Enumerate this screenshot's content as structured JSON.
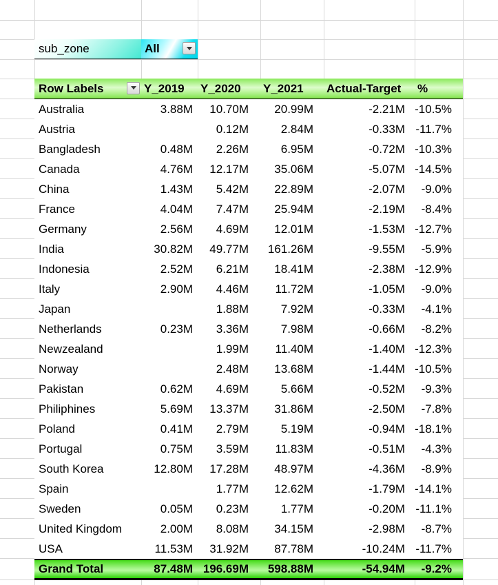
{
  "filter": {
    "label": "sub_zone",
    "value": "All"
  },
  "pivot_table": {
    "columns": [
      "Row Labels",
      "Y_2019",
      "Y_2020",
      "Y_2021",
      "Actual-Target",
      "%"
    ],
    "rows": [
      [
        "Australia",
        "3.88M",
        "10.70M",
        "20.99M",
        "-2.21M",
        "-10.5%"
      ],
      [
        "Austria",
        "",
        "0.12M",
        "2.84M",
        "-0.33M",
        "-11.7%"
      ],
      [
        "Bangladesh",
        "0.48M",
        "2.26M",
        "6.95M",
        "-0.72M",
        "-10.3%"
      ],
      [
        "Canada",
        "4.76M",
        "12.17M",
        "35.06M",
        "-5.07M",
        "-14.5%"
      ],
      [
        "China",
        "1.43M",
        "5.42M",
        "22.89M",
        "-2.07M",
        "-9.0%"
      ],
      [
        "France",
        "4.04M",
        "7.47M",
        "25.94M",
        "-2.19M",
        "-8.4%"
      ],
      [
        "Germany",
        "2.56M",
        "4.69M",
        "12.01M",
        "-1.53M",
        "-12.7%"
      ],
      [
        "India",
        "30.82M",
        "49.77M",
        "161.26M",
        "-9.55M",
        "-5.9%"
      ],
      [
        "Indonesia",
        "2.52M",
        "6.21M",
        "18.41M",
        "-2.38M",
        "-12.9%"
      ],
      [
        "Italy",
        "2.90M",
        "4.46M",
        "11.72M",
        "-1.05M",
        "-9.0%"
      ],
      [
        "Japan",
        "",
        "1.88M",
        "7.92M",
        "-0.33M",
        "-4.1%"
      ],
      [
        "Netherlands",
        "0.23M",
        "3.36M",
        "7.98M",
        "-0.66M",
        "-8.2%"
      ],
      [
        "Newzealand",
        "",
        "1.99M",
        "11.40M",
        "-1.40M",
        "-12.3%"
      ],
      [
        "Norway",
        "",
        "2.48M",
        "13.68M",
        "-1.44M",
        "-10.5%"
      ],
      [
        "Pakistan",
        "0.62M",
        "4.69M",
        "5.66M",
        "-0.52M",
        "-9.3%"
      ],
      [
        "Philiphines",
        "5.69M",
        "13.37M",
        "31.86M",
        "-2.50M",
        "-7.8%"
      ],
      [
        "Poland",
        "0.41M",
        "2.79M",
        "5.19M",
        "-0.94M",
        "-18.1%"
      ],
      [
        "Portugal",
        "0.75M",
        "3.59M",
        "11.83M",
        "-0.51M",
        "-4.3%"
      ],
      [
        "South Korea",
        "12.80M",
        "17.28M",
        "48.97M",
        "-4.36M",
        "-8.9%"
      ],
      [
        "Spain",
        "",
        "1.77M",
        "12.62M",
        "-1.79M",
        "-14.1%"
      ],
      [
        "Sweden",
        "0.05M",
        "0.23M",
        "1.77M",
        "-0.20M",
        "-11.1%"
      ],
      [
        "United Kingdom",
        "2.00M",
        "8.08M",
        "34.15M",
        "-2.98M",
        "-8.7%"
      ],
      [
        "USA",
        "11.53M",
        "31.92M",
        "87.78M",
        "-10.24M",
        "-11.7%"
      ]
    ],
    "grand_total": [
      "Grand Total",
      "87.48M",
      "196.69M",
      "598.88M",
      "-54.94M",
      "-9.2%"
    ]
  },
  "colors": {
    "header_green": "#8be95a",
    "grand_total_green": "#46db19",
    "filter_label_cyan": "#43e9d3",
    "filter_value_cyan": "#00d5ea",
    "gridline": "#d7d7d7",
    "border_black": "#000000"
  }
}
